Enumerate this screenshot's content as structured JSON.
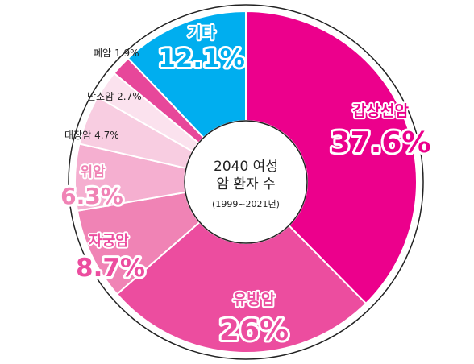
{
  "chart_data": {
    "type": "pie",
    "title": "2040 여성 암 환자 수",
    "subtitle": "(1999~2021년)",
    "slices": [
      {
        "label": "갑상선암",
        "pct_text": "37.6%",
        "value": 37.6,
        "color": "#ec008c"
      },
      {
        "label": "유방암",
        "pct_text": "26%",
        "value": 26.0,
        "color": "#ec4d9f"
      },
      {
        "label": "자궁암",
        "pct_text": "8.7%",
        "value": 8.7,
        "color": "#f083b5"
      },
      {
        "label": "위암",
        "pct_text": "6.3%",
        "value": 6.3,
        "color": "#f5afd0"
      },
      {
        "label": "대장암",
        "pct_text": "4.7%",
        "value": 4.7,
        "color": "#f8cde1"
      },
      {
        "label": "난소암",
        "pct_text": "2.7%",
        "value": 2.7,
        "color": "#fbe2ee"
      },
      {
        "label": "폐암",
        "pct_text": "1.9%",
        "value": 1.9,
        "color": "#e7479a"
      },
      {
        "label": "기타",
        "pct_text": "12.1%",
        "value": 12.1,
        "color": "#00aeef"
      }
    ]
  }
}
